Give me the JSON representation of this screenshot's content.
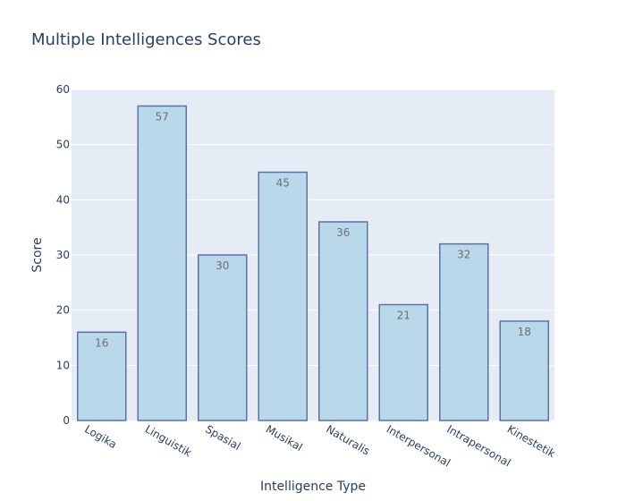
{
  "chart_data": {
    "type": "bar",
    "title": "Multiple Intelligences Scores",
    "xlabel": "Intelligence Type",
    "ylabel": "Score",
    "categories": [
      "Logika",
      "Linguistik",
      "Spasial",
      "Musikal",
      "Naturalis",
      "Interpersonal",
      "Intrapersonal",
      "Kinestetik"
    ],
    "values": [
      16,
      57,
      30,
      45,
      36,
      21,
      32,
      18
    ],
    "ylim": [
      0,
      60
    ],
    "yticks": [
      0,
      10,
      20,
      30,
      40,
      50,
      60
    ],
    "grid": true,
    "colors": {
      "bar_fill": "#b9d8ea",
      "bar_stroke": "#5a72a8",
      "plot_bg": "#e5ecf6",
      "grid": "#ffffff",
      "text": "#2a3f5f"
    }
  }
}
